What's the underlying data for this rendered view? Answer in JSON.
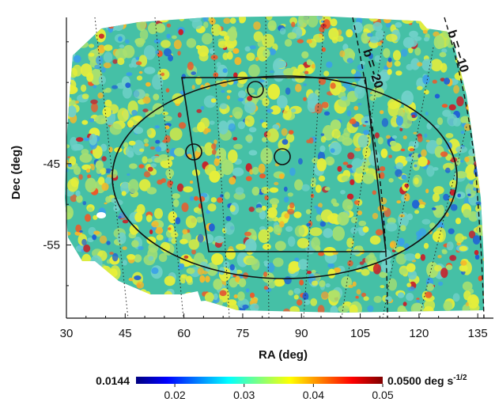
{
  "chart_data": {
    "type": "heatmap",
    "title": "",
    "xlabel": "RA (deg)",
    "ylabel": "Dec (deg)",
    "x_ticks": [
      "30",
      "45",
      "60",
      "75",
      "90",
      "105",
      "120",
      "135"
    ],
    "x_tick_values": [
      30,
      45,
      60,
      75,
      90,
      105,
      120,
      135
    ],
    "y_ticks": [
      "-45",
      "-55"
    ],
    "y_tick_values": [
      -45,
      -55
    ],
    "xlim": [
      30,
      139
    ],
    "ylim": [
      -64,
      -27
    ],
    "colorbar": {
      "min_label": "0.0144",
      "max_label": "0.0500 deg s",
      "max_label_exp": "-1/2",
      "tick_labels": [
        "0.02",
        "0.03",
        "0.04",
        "0.05"
      ],
      "tick_values": [
        0.02,
        0.03,
        0.04,
        0.05
      ],
      "range": [
        0.0144,
        0.05
      ],
      "colormap": "jet"
    },
    "contours": [
      {
        "label": "b = -20",
        "text": "b = -20"
      },
      {
        "label": "b = -10",
        "text": "b = −10"
      }
    ],
    "colors": {
      "background": "#ffffff",
      "map_base": "#45c0a6",
      "outline": "#111111"
    }
  }
}
